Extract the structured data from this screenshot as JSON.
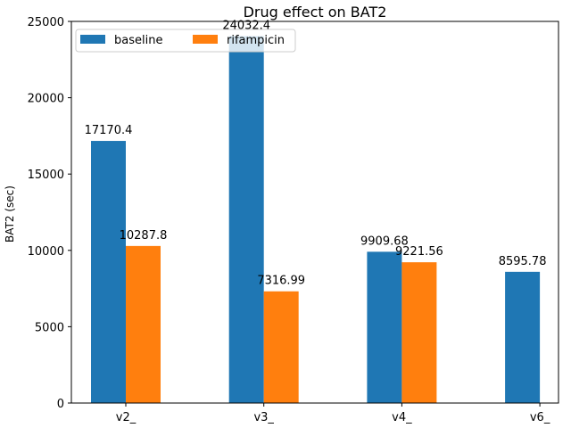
{
  "chart_data": {
    "type": "bar",
    "title": "Drug effect on BAT2",
    "xlabel": "",
    "ylabel": "BAT2 (sec)",
    "categories": [
      "v2_",
      "v3_",
      "v4_",
      "v6_"
    ],
    "ylim": [
      0,
      25000
    ],
    "yticks": [
      0,
      5000,
      10000,
      15000,
      20000,
      25000
    ],
    "grid": false,
    "legend_position": "top-left",
    "series": [
      {
        "name": "baseline",
        "color": "#1f77b4",
        "values": [
          17170.4,
          24032.4,
          9909.68,
          8595.78
        ],
        "labels": [
          "17170.4",
          "24032.4",
          "9909.68",
          "8595.78"
        ]
      },
      {
        "name": "rifampicin",
        "color": "#ff7f0e",
        "values": [
          10287.8,
          7316.99,
          9221.56,
          null
        ],
        "labels": [
          "10287.8",
          "7316.99",
          "9221.56",
          null
        ]
      }
    ]
  }
}
